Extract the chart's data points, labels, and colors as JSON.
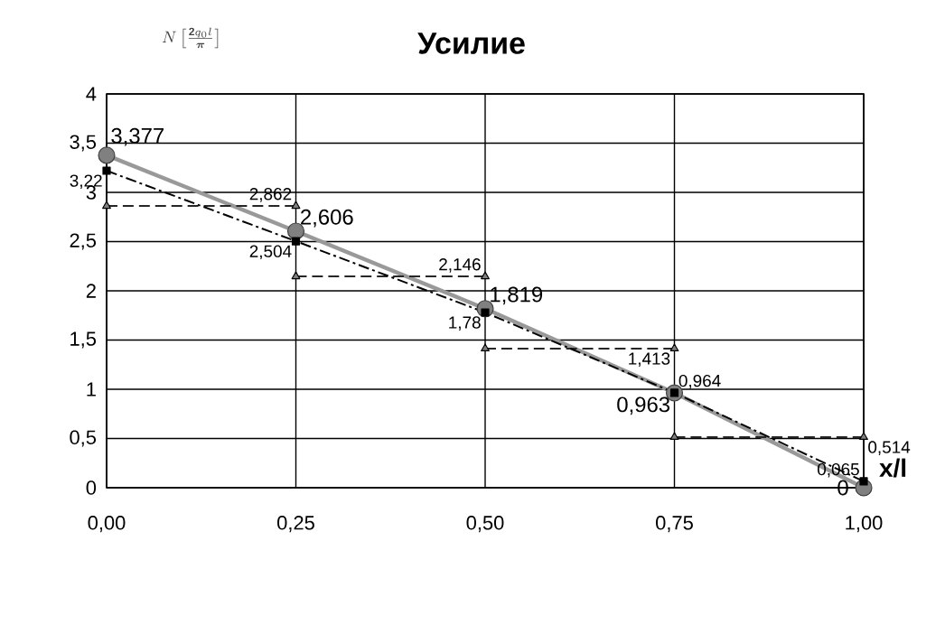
{
  "chart_data": {
    "type": "line",
    "title": "Усилие",
    "xlabel": "x/l",
    "ylabel": "N\\left[\\frac{\\mathbf{2}q_0 l}{\\boldsymbol{\\pi}}\\right]",
    "x": [
      0,
      0.25,
      0.5,
      0.75,
      1
    ],
    "xlim": [
      0,
      1
    ],
    "ylim": [
      0,
      4
    ],
    "xticks": [
      {
        "value": 0,
        "label": "0,00"
      },
      {
        "value": 0.25,
        "label": "0,25"
      },
      {
        "value": 0.5,
        "label": "0,50"
      },
      {
        "value": 0.75,
        "label": "0,75"
      },
      {
        "value": 1,
        "label": "1,00"
      }
    ],
    "yticks": [
      0,
      {
        "value": 0.5,
        "label": "0,5"
      },
      1,
      {
        "value": 1.5,
        "label": "1,5"
      },
      2,
      {
        "value": 2.5,
        "label": "2,5"
      },
      3,
      {
        "value": 3.5,
        "label": "3,5"
      },
      4
    ],
    "grid": true,
    "series": [
      {
        "color": "#999999",
        "marker": "circle",
        "line_style": "solid",
        "values": [
          3.377,
          2.606,
          1.819,
          0.963,
          0
        ],
        "value_labels": [
          "3,377",
          "2,606",
          "1,819",
          "0,963",
          "0"
        ]
      },
      {
        "type": "step",
        "color": "#262626",
        "marker": "triangle",
        "line_style": "dashed",
        "x": [
          0,
          0.25,
          null,
          0.25,
          0.5,
          null,
          0.5,
          0.75,
          null,
          0.75,
          1
        ],
        "values": [
          2.862,
          2.862,
          null,
          2.146,
          2.146,
          null,
          1.413,
          1.413,
          null,
          0.514,
          0.514
        ],
        "value_labels": [
          null,
          "2,862",
          null,
          null,
          "2,146",
          null,
          null,
          "1,413",
          null,
          null,
          "0,514"
        ]
      },
      {
        "color": "#000000",
        "marker": "square",
        "line_style": "dashdot",
        "values": [
          3.22,
          2.504,
          1.78,
          0.964,
          0.065
        ],
        "value_labels": [
          "3,22",
          "2,504",
          "1,78",
          "0,964",
          "0,065"
        ]
      }
    ]
  }
}
